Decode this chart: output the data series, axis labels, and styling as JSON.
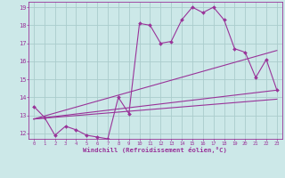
{
  "xlabel": "Windchill (Refroidissement éolien,°C)",
  "bg_color": "#cce8e8",
  "line_color": "#993399",
  "grid_color": "#aacccc",
  "x_min": 0,
  "x_max": 23,
  "y_min": 12,
  "y_max": 19,
  "line1_x": [
    0,
    1,
    2,
    3,
    4,
    5,
    6,
    7,
    8,
    9,
    10,
    11,
    12,
    13,
    14,
    15,
    16,
    17,
    18,
    19,
    20,
    21,
    22,
    23
  ],
  "line1_y": [
    13.5,
    12.9,
    11.9,
    12.4,
    12.2,
    11.9,
    11.8,
    11.7,
    14.0,
    13.1,
    18.1,
    18.0,
    17.0,
    17.1,
    18.3,
    19.0,
    18.7,
    19.0,
    18.3,
    16.7,
    16.5,
    15.1,
    16.1,
    14.4
  ],
  "line2_x": [
    0,
    23
  ],
  "line2_y": [
    12.8,
    16.6
  ],
  "line3_x": [
    0,
    23
  ],
  "line3_y": [
    12.8,
    14.4
  ],
  "line4_x": [
    0,
    23
  ],
  "line4_y": [
    12.8,
    13.9
  ]
}
